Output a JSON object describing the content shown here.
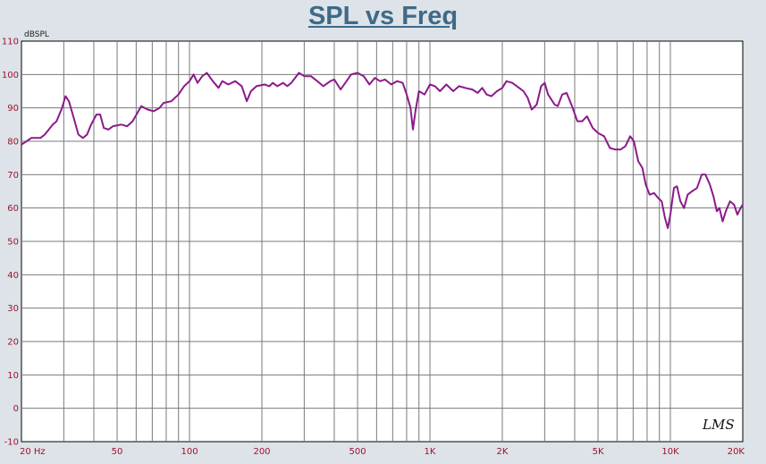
{
  "chart_data": {
    "type": "line",
    "title": "SPL vs Freq",
    "ylabel": "dBSPL",
    "xscale": "log",
    "xlim": [
      20,
      20000
    ],
    "ylim": [
      -10,
      110
    ],
    "grid": true,
    "y_ticks": [
      -10,
      0,
      10,
      20,
      30,
      40,
      50,
      60,
      70,
      80,
      90,
      100,
      110
    ],
    "x_ticks": [
      {
        "value": 20,
        "label": "20  Hz"
      },
      {
        "value": 50,
        "label": "50"
      },
      {
        "value": 100,
        "label": "100"
      },
      {
        "value": 200,
        "label": "200"
      },
      {
        "value": 500,
        "label": "500"
      },
      {
        "value": 1000,
        "label": "1K"
      },
      {
        "value": 2000,
        "label": "2K"
      },
      {
        "value": 5000,
        "label": "5K"
      },
      {
        "value": 10000,
        "label": "10K"
      },
      {
        "value": 20000,
        "label": "20K"
      }
    ],
    "series": [
      {
        "color": "#8b1a8b",
        "points": [
          [
            20,
            79
          ],
          [
            21,
            80
          ],
          [
            22,
            81
          ],
          [
            24,
            81
          ],
          [
            25,
            82
          ],
          [
            27,
            85
          ],
          [
            28,
            86
          ],
          [
            29.5,
            90
          ],
          [
            30.5,
            93.5
          ],
          [
            31.5,
            92
          ],
          [
            33,
            87
          ],
          [
            34.5,
            82
          ],
          [
            36,
            81
          ],
          [
            37.5,
            82
          ],
          [
            39,
            85
          ],
          [
            41,
            88
          ],
          [
            42.5,
            88
          ],
          [
            44,
            84
          ],
          [
            46,
            83.5
          ],
          [
            48,
            84.5
          ],
          [
            52,
            85
          ],
          [
            55,
            84.5
          ],
          [
            58,
            86
          ],
          [
            63,
            90.5
          ],
          [
            67,
            89.5
          ],
          [
            71,
            89
          ],
          [
            75,
            90
          ],
          [
            78,
            91.5
          ],
          [
            84,
            92
          ],
          [
            90,
            94
          ],
          [
            95,
            96.5
          ],
          [
            100,
            98
          ],
          [
            104,
            100
          ],
          [
            108,
            97.5
          ],
          [
            113,
            99.5
          ],
          [
            118,
            100.5
          ],
          [
            125,
            98
          ],
          [
            132,
            96
          ],
          [
            137,
            98
          ],
          [
            145,
            97
          ],
          [
            155,
            98
          ],
          [
            165,
            96.5
          ],
          [
            173,
            92
          ],
          [
            180,
            95
          ],
          [
            190,
            96.5
          ],
          [
            205,
            97
          ],
          [
            215,
            96.5
          ],
          [
            222,
            97.5
          ],
          [
            232,
            96.5
          ],
          [
            245,
            97.5
          ],
          [
            255,
            96.5
          ],
          [
            265,
            97.5
          ],
          [
            275,
            99
          ],
          [
            285,
            100.5
          ],
          [
            300,
            99.5
          ],
          [
            320,
            99.5
          ],
          [
            340,
            98
          ],
          [
            360,
            96.5
          ],
          [
            385,
            98
          ],
          [
            400,
            98.5
          ],
          [
            425,
            95.5
          ],
          [
            450,
            98
          ],
          [
            470,
            100
          ],
          [
            500,
            100.5
          ],
          [
            530,
            99.5
          ],
          [
            560,
            97
          ],
          [
            590,
            99
          ],
          [
            620,
            98
          ],
          [
            650,
            98.5
          ],
          [
            690,
            97
          ],
          [
            730,
            98
          ],
          [
            770,
            97.5
          ],
          [
            800,
            94
          ],
          [
            830,
            90
          ],
          [
            850,
            83.5
          ],
          [
            870,
            89
          ],
          [
            900,
            95
          ],
          [
            950,
            94
          ],
          [
            1000,
            97
          ],
          [
            1050,
            96.5
          ],
          [
            1100,
            95
          ],
          [
            1170,
            97
          ],
          [
            1250,
            95
          ],
          [
            1320,
            96.5
          ],
          [
            1400,
            96
          ],
          [
            1500,
            95.5
          ],
          [
            1580,
            94.5
          ],
          [
            1650,
            96
          ],
          [
            1720,
            94
          ],
          [
            1800,
            93.5
          ],
          [
            1900,
            95
          ],
          [
            2000,
            96
          ],
          [
            2080,
            98
          ],
          [
            2200,
            97.5
          ],
          [
            2350,
            96
          ],
          [
            2450,
            95
          ],
          [
            2550,
            93
          ],
          [
            2650,
            89.5
          ],
          [
            2780,
            91
          ],
          [
            2900,
            96.5
          ],
          [
            3000,
            97.5
          ],
          [
            3100,
            94
          ],
          [
            3300,
            91
          ],
          [
            3400,
            90.5
          ],
          [
            3550,
            94
          ],
          [
            3700,
            94.5
          ],
          [
            3900,
            90.5
          ],
          [
            4100,
            86
          ],
          [
            4300,
            86
          ],
          [
            4500,
            87.5
          ],
          [
            4750,
            84
          ],
          [
            5000,
            82.5
          ],
          [
            5300,
            81.5
          ],
          [
            5600,
            78
          ],
          [
            5900,
            77.5
          ],
          [
            6200,
            77.5
          ],
          [
            6500,
            78.5
          ],
          [
            6800,
            81.5
          ],
          [
            7050,
            80
          ],
          [
            7350,
            74
          ],
          [
            7650,
            72
          ],
          [
            7900,
            67
          ],
          [
            8200,
            64
          ],
          [
            8550,
            64.5
          ],
          [
            8900,
            63
          ],
          [
            9200,
            62
          ],
          [
            9500,
            57
          ],
          [
            9750,
            54
          ],
          [
            10000,
            58
          ],
          [
            10350,
            66
          ],
          [
            10650,
            66.5
          ],
          [
            11000,
            62
          ],
          [
            11400,
            60
          ],
          [
            11800,
            64
          ],
          [
            12300,
            65
          ],
          [
            12900,
            66
          ],
          [
            13500,
            70
          ],
          [
            14000,
            70
          ],
          [
            14600,
            67
          ],
          [
            15100,
            63.5
          ],
          [
            15600,
            59
          ],
          [
            16000,
            60
          ],
          [
            16500,
            56
          ],
          [
            17000,
            59
          ],
          [
            17700,
            62
          ],
          [
            18400,
            61
          ],
          [
            19000,
            58
          ],
          [
            19600,
            60
          ],
          [
            20000,
            61
          ]
        ]
      }
    ]
  },
  "watermark": "LMS"
}
